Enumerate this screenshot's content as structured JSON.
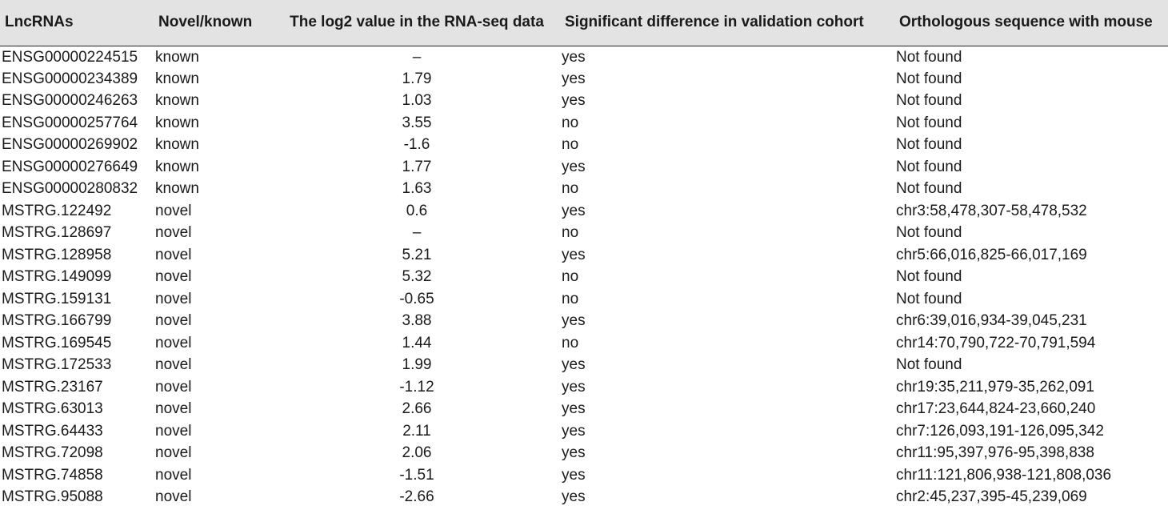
{
  "table": {
    "headers": [
      "LncRNAs",
      "Novel/known",
      "The log2 value in the RNA-seq data",
      "Significant difference in validation cohort",
      "Orthologous sequence with mouse"
    ],
    "rows": [
      [
        "ENSG00000224515",
        "known",
        "–",
        "yes",
        "Not found"
      ],
      [
        "ENSG00000234389",
        "known",
        "1.79",
        "yes",
        "Not found"
      ],
      [
        "ENSG00000246263",
        "known",
        "1.03",
        "yes",
        "Not found"
      ],
      [
        "ENSG00000257764",
        "known",
        "3.55",
        "no",
        "Not found"
      ],
      [
        "ENSG00000269902",
        "known",
        "-1.6",
        "no",
        "Not found"
      ],
      [
        "ENSG00000276649",
        "known",
        "1.77",
        "yes",
        "Not found"
      ],
      [
        "ENSG00000280832",
        "known",
        "1.63",
        "no",
        "Not found"
      ],
      [
        "MSTRG.122492",
        "novel",
        "0.6",
        "yes",
        "chr3:58,478,307-58,478,532"
      ],
      [
        "MSTRG.128697",
        "novel",
        "–",
        "no",
        "Not found"
      ],
      [
        "MSTRG.128958",
        "novel",
        "5.21",
        "yes",
        "chr5:66,016,825-66,017,169"
      ],
      [
        "MSTRG.149099",
        "novel",
        "5.32",
        "no",
        "Not found"
      ],
      [
        "MSTRG.159131",
        "novel",
        "-0.65",
        "no",
        "Not found"
      ],
      [
        "MSTRG.166799",
        "novel",
        "3.88",
        "yes",
        "chr6:39,016,934-39,045,231"
      ],
      [
        "MSTRG.169545",
        "novel",
        "1.44",
        "no",
        "chr14:70,790,722-70,791,594"
      ],
      [
        "MSTRG.172533",
        "novel",
        "1.99",
        "yes",
        "Not found"
      ],
      [
        "MSTRG.23167",
        "novel",
        "-1.12",
        "yes",
        "chr19:35,211,979-35,262,091"
      ],
      [
        "MSTRG.63013",
        "novel",
        "2.66",
        "yes",
        "chr17:23,644,824-23,660,240"
      ],
      [
        "MSTRG.64433",
        "novel",
        "2.11",
        "yes",
        "chr7:126,093,191-126,095,342"
      ],
      [
        "MSTRG.72098",
        "novel",
        "2.06",
        "yes",
        "chr11:95,397,976-95,398,838"
      ],
      [
        "MSTRG.74858",
        "novel",
        "-1.51",
        "yes",
        "chr11:121,806,938-121,808,036"
      ],
      [
        "MSTRG.95088",
        "novel",
        "-2.66",
        "yes",
        "chr2:45,237,395-45,239,069"
      ]
    ]
  }
}
